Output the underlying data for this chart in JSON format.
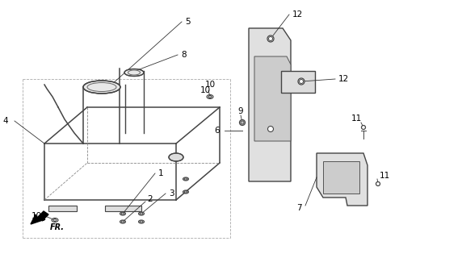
{
  "bg_color": "#ffffff",
  "line_color": "#555555",
  "figsize": [
    5.72,
    3.2
  ],
  "dpi": 100
}
